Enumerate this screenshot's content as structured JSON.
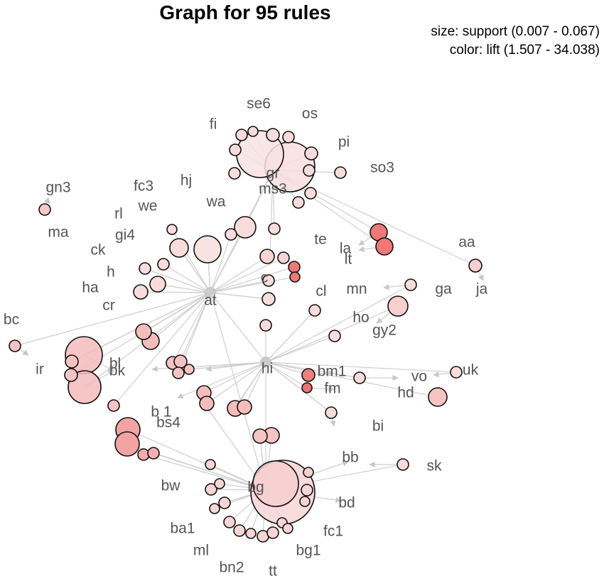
{
  "title": "Graph for 95 rules",
  "legend": {
    "size_text": "size: support (0.007 - 0.067)",
    "color_text": "color: lift (1.507 - 34.038)",
    "color_low": "#f9e8e8",
    "color_high": "#ee6b6b"
  },
  "item_labels": [
    "se6",
    "os",
    "fi",
    "pi",
    "so3",
    "gr",
    "hj",
    "fc3",
    "ms3",
    "gn3",
    "wa",
    "we",
    "rl",
    "gi4",
    "ma",
    "ck",
    "te",
    "la",
    "aa",
    "lt",
    "h",
    "c",
    "ha",
    "at",
    "mn",
    "ga",
    "ja",
    "cr",
    "cl",
    "ho",
    "bc",
    "gy2",
    "ir",
    "bl",
    "bk",
    "hi",
    "bm1",
    "vo",
    "uk",
    "fm",
    "hd",
    "b 1",
    "bs4",
    "bi",
    "bb",
    "sk",
    "bw",
    "bg",
    "bd",
    "ba1",
    "fc1",
    "ml",
    "bg1",
    "bn2",
    "tt"
  ],
  "rule_nodes_note": "circle size: support, circle color: lift"
}
